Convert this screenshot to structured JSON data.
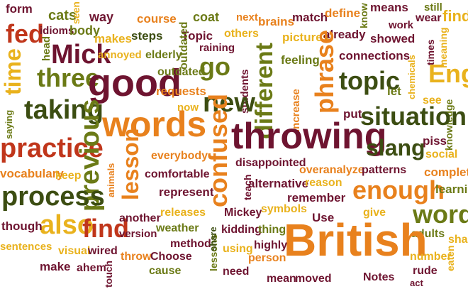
{
  "palette": {
    "red": "#c0361b",
    "orange": "#e8811d",
    "yellow": "#e9b21d",
    "olive": "#6b7a16",
    "darkgreen": "#3c4d12",
    "maroon": "#6e1430"
  },
  "words": [
    {
      "text": "form",
      "color": "maroon"
    },
    {
      "text": "cats",
      "color": "olive"
    },
    {
      "text": "seen",
      "color": "yellow"
    },
    {
      "text": "way",
      "color": "maroon"
    },
    {
      "text": "course",
      "color": "orange"
    },
    {
      "text": "coat",
      "color": "olive"
    },
    {
      "text": "next",
      "color": "orange"
    },
    {
      "text": "brains",
      "color": "orange"
    },
    {
      "text": "match",
      "color": "maroon"
    },
    {
      "text": "define",
      "color": "orange"
    },
    {
      "text": "know",
      "color": "olive"
    },
    {
      "text": "means",
      "color": "maroon"
    },
    {
      "text": "still",
      "color": "olive"
    },
    {
      "text": "find",
      "color": "yellow"
    },
    {
      "text": "fed",
      "color": "red"
    },
    {
      "text": "idioms",
      "color": "maroon"
    },
    {
      "text": "body",
      "color": "olive"
    },
    {
      "text": "makes",
      "color": "yellow"
    },
    {
      "text": "steps",
      "color": "darkgreen"
    },
    {
      "text": "Topic",
      "color": "maroon"
    },
    {
      "text": "others",
      "color": "yellow"
    },
    {
      "text": "work",
      "color": "maroon"
    },
    {
      "text": "wear",
      "color": "maroon"
    },
    {
      "text": "time",
      "color": "yellow"
    },
    {
      "text": "Mick",
      "color": "maroon"
    },
    {
      "text": "annoyed",
      "color": "yellow"
    },
    {
      "text": "elderly",
      "color": "olive"
    },
    {
      "text": "raining",
      "color": "maroon"
    },
    {
      "text": "pictures",
      "color": "yellow"
    },
    {
      "text": "already",
      "color": "maroon"
    },
    {
      "text": "showed",
      "color": "maroon"
    },
    {
      "text": "times",
      "color": "maroon"
    },
    {
      "text": "meaning",
      "color": "yellow"
    },
    {
      "text": "head",
      "color": "olive"
    },
    {
      "text": "three",
      "color": "olive"
    },
    {
      "text": "good",
      "color": "maroon"
    },
    {
      "text": "outdated",
      "color": "olive"
    },
    {
      "text": "go",
      "color": "olive"
    },
    {
      "text": "students",
      "color": "maroon"
    },
    {
      "text": "feeling",
      "color": "olive"
    },
    {
      "text": "connections",
      "color": "maroon"
    },
    {
      "text": "English",
      "color": "yellow"
    },
    {
      "text": "requests",
      "color": "orange"
    },
    {
      "text": "different",
      "color": "olive"
    },
    {
      "text": "phrase",
      "color": "orange"
    },
    {
      "text": "topic",
      "color": "darkgreen"
    },
    {
      "text": "let",
      "color": "olive"
    },
    {
      "text": "chemicals",
      "color": "yellow"
    },
    {
      "text": "see",
      "color": "yellow"
    },
    {
      "text": "taking",
      "color": "darkgreen"
    },
    {
      "text": "new",
      "color": "darkgreen"
    },
    {
      "text": "now",
      "color": "yellow"
    },
    {
      "text": "increase",
      "color": "orange"
    },
    {
      "text": "put",
      "color": "maroon"
    },
    {
      "text": "knowledge",
      "color": "olive"
    },
    {
      "text": "saying",
      "color": "olive"
    },
    {
      "text": "words",
      "color": "orange"
    },
    {
      "text": "situation",
      "color": "darkgreen"
    },
    {
      "text": "throwing",
      "color": "maroon"
    },
    {
      "text": "piss",
      "color": "maroon"
    },
    {
      "text": "social",
      "color": "yellow"
    },
    {
      "text": "practice",
      "color": "red"
    },
    {
      "text": "previous",
      "color": "olive"
    },
    {
      "text": "everybody",
      "color": "orange"
    },
    {
      "text": "confused",
      "color": "orange"
    },
    {
      "text": "slang",
      "color": "darkgreen"
    },
    {
      "text": "complete",
      "color": "orange"
    },
    {
      "text": "vocabulary",
      "color": "orange"
    },
    {
      "text": "keep",
      "color": "yellow"
    },
    {
      "text": "lesson",
      "color": "orange"
    },
    {
      "text": "comfortable",
      "color": "maroon"
    },
    {
      "text": "disappointed",
      "color": "maroon"
    },
    {
      "text": "overanalyze",
      "color": "orange"
    },
    {
      "text": "patterns",
      "color": "maroon"
    },
    {
      "text": "alternative",
      "color": "maroon"
    },
    {
      "text": "reason",
      "color": "yellow"
    },
    {
      "text": "enough",
      "color": "orange"
    },
    {
      "text": "learning",
      "color": "olive"
    },
    {
      "text": "process",
      "color": "darkgreen"
    },
    {
      "text": "animals",
      "color": "orange"
    },
    {
      "text": "represent",
      "color": "maroon"
    },
    {
      "text": "teach",
      "color": "maroon"
    },
    {
      "text": "remember",
      "color": "maroon"
    },
    {
      "text": "give",
      "color": "yellow"
    },
    {
      "text": "word",
      "color": "olive"
    },
    {
      "text": "also",
      "color": "yellow"
    },
    {
      "text": "though",
      "color": "maroon"
    },
    {
      "text": "find",
      "color": "red"
    },
    {
      "text": "another",
      "color": "maroon"
    },
    {
      "text": "releases",
      "color": "yellow"
    },
    {
      "text": "Mickey",
      "color": "maroon"
    },
    {
      "text": "symbols",
      "color": "yellow"
    },
    {
      "text": "Use",
      "color": "maroon"
    },
    {
      "text": "adults",
      "color": "olive"
    },
    {
      "text": "sharing",
      "color": "yellow"
    },
    {
      "text": "version",
      "color": "maroon"
    },
    {
      "text": "weather",
      "color": "olive"
    },
    {
      "text": "kidding",
      "color": "maroon"
    },
    {
      "text": "thing",
      "color": "olive"
    },
    {
      "text": "British",
      "color": "orange"
    },
    {
      "text": "lessons",
      "color": "olive"
    },
    {
      "text": "method",
      "color": "maroon"
    },
    {
      "text": "sentences",
      "color": "yellow"
    },
    {
      "text": "visual",
      "color": "yellow"
    },
    {
      "text": "wired",
      "color": "maroon"
    },
    {
      "text": "share",
      "color": "darkgreen"
    },
    {
      "text": "using",
      "color": "yellow"
    },
    {
      "text": "highly",
      "color": "maroon"
    },
    {
      "text": "number",
      "color": "yellow"
    },
    {
      "text": "eaten",
      "color": "yellow"
    },
    {
      "text": "make",
      "color": "maroon"
    },
    {
      "text": "ahem",
      "color": "maroon"
    },
    {
      "text": "throw",
      "color": "orange"
    },
    {
      "text": "Choose",
      "color": "maroon"
    },
    {
      "text": "person",
      "color": "orange"
    },
    {
      "text": "rude",
      "color": "maroon"
    },
    {
      "text": "touch",
      "color": "maroon"
    },
    {
      "text": "cause",
      "color": "olive"
    },
    {
      "text": "need",
      "color": "maroon"
    },
    {
      "text": "mean",
      "color": "maroon"
    },
    {
      "text": "moved",
      "color": "maroon"
    },
    {
      "text": "Notes",
      "color": "maroon"
    },
    {
      "text": "act",
      "color": "maroon"
    },
    {
      "text": "f",
      "color": "yellow"
    }
  ]
}
